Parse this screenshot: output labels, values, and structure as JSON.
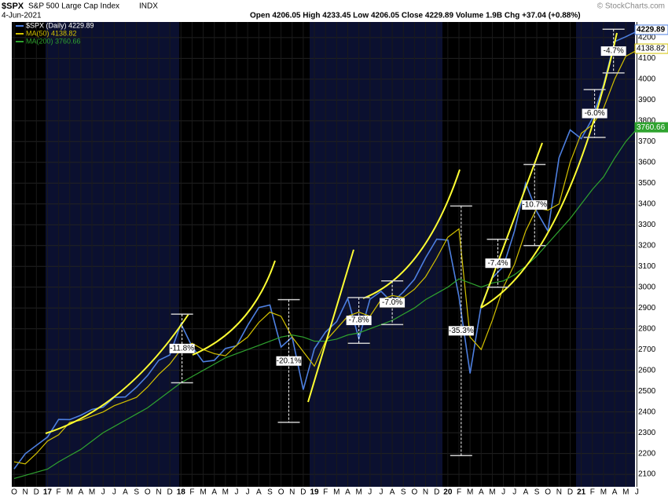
{
  "header": {
    "symbol": "$SPX",
    "name": "S&P 500 Large Cap Index",
    "exchange": "INDX",
    "date": "4-Jun-2021",
    "quote": "Open 4206.05  High 4233.45  Low 4206.05  Close 4229.89  Volume 1.9B  Chg +37.04 (+0.88%)",
    "credit": "© StockCharts.com"
  },
  "chart_data": {
    "type": "line",
    "legend": "top-left",
    "grid": true,
    "categories": [
      "O",
      "N",
      "D",
      "17",
      "F",
      "M",
      "A",
      "M",
      "J",
      "J",
      "A",
      "S",
      "O",
      "N",
      "D",
      "18",
      "F",
      "M",
      "A",
      "M",
      "J",
      "J",
      "A",
      "S",
      "O",
      "N",
      "D",
      "19",
      "F",
      "M",
      "A",
      "M",
      "J",
      "J",
      "A",
      "S",
      "O",
      "N",
      "D",
      "20",
      "F",
      "M",
      "A",
      "M",
      "J",
      "J",
      "A",
      "S",
      "O",
      "N",
      "D",
      "21",
      "F",
      "M",
      "A",
      "M",
      "J"
    ],
    "series": [
      {
        "name": "$SPX (Daily) 4229.89",
        "color": "#4d7fe0",
        "values": [
          2126,
          2199,
          2239,
          2279,
          2364,
          2363,
          2384,
          2412,
          2423,
          2470,
          2472,
          2519,
          2575,
          2648,
          2674,
          2824,
          2714,
          2641,
          2648,
          2705,
          2718,
          2816,
          2902,
          2914,
          2712,
          2760,
          2507,
          2704,
          2784,
          2834,
          2946,
          2752,
          2942,
          2980,
          2926,
          2977,
          3038,
          3141,
          3231,
          3226,
          2954,
          2585,
          2912,
          3044,
          3100,
          3271,
          3500,
          3363,
          3270,
          3622,
          3756,
          3714,
          3811,
          3973,
          4181,
          4204,
          4230
        ]
      },
      {
        "name": "MA(50) 4138.82",
        "color": "#d4c200",
        "values": [
          2160,
          2150,
          2200,
          2260,
          2290,
          2350,
          2360,
          2380,
          2400,
          2430,
          2450,
          2470,
          2520,
          2580,
          2630,
          2700,
          2730,
          2700,
          2680,
          2670,
          2720,
          2760,
          2830,
          2880,
          2860,
          2760,
          2690,
          2620,
          2740,
          2800,
          2860,
          2880,
          2860,
          2940,
          2960,
          2950,
          2990,
          3050,
          3140,
          3240,
          3280,
          2760,
          2700,
          2840,
          3000,
          3110,
          3270,
          3380,
          3370,
          3400,
          3600,
          3740,
          3780,
          3860,
          4000,
          4110,
          4139
        ]
      },
      {
        "name": "MA(200) 3760.66",
        "color": "#2fa32f",
        "values": [
          2080,
          2095,
          2110,
          2125,
          2160,
          2190,
          2220,
          2260,
          2300,
          2330,
          2360,
          2390,
          2420,
          2460,
          2500,
          2540,
          2570,
          2600,
          2630,
          2660,
          2680,
          2700,
          2720,
          2740,
          2760,
          2770,
          2760,
          2740,
          2740,
          2750,
          2770,
          2780,
          2800,
          2820,
          2840,
          2870,
          2900,
          2940,
          2970,
          3000,
          3040,
          3020,
          3000,
          3020,
          3030,
          3060,
          3100,
          3150,
          3210,
          3270,
          3330,
          3400,
          3470,
          3530,
          3620,
          3700,
          3761
        ]
      }
    ],
    "last_labels": [
      "4229.89",
      "4138.82",
      "3760.66"
    ],
    "ylim": [
      2040,
      4275
    ],
    "yticks": [
      2100,
      2200,
      2300,
      2400,
      2500,
      2600,
      2700,
      2800,
      2900,
      3000,
      3100,
      3200,
      3300,
      3400,
      3500,
      3600,
      3700,
      3800,
      3900,
      4000,
      4100,
      4200
    ],
    "annotations": [
      {
        "label": "-11.8%",
        "month": 15.1,
        "top": 2870,
        "bottom": 2540
      },
      {
        "label": "-20.1%",
        "month": 24.7,
        "top": 2940,
        "bottom": 2350
      },
      {
        "label": "-7.8%",
        "month": 31,
        "top": 2950,
        "bottom": 2730
      },
      {
        "label": "-7.0%",
        "month": 34,
        "top": 3030,
        "bottom": 2820
      },
      {
        "label": "-35.3%",
        "month": 40.2,
        "top": 3390,
        "bottom": 2190
      },
      {
        "label": "-7.4%",
        "month": 43.5,
        "top": 3230,
        "bottom": 3000
      },
      {
        "label": "-10.7%",
        "month": 46.8,
        "top": 3590,
        "bottom": 3200
      },
      {
        "label": "-6.0%",
        "month": 52.2,
        "top": 3950,
        "bottom": 3720
      },
      {
        "label": "-4.7%",
        "month": 53.9,
        "top": 4240,
        "bottom": 4030
      }
    ]
  }
}
